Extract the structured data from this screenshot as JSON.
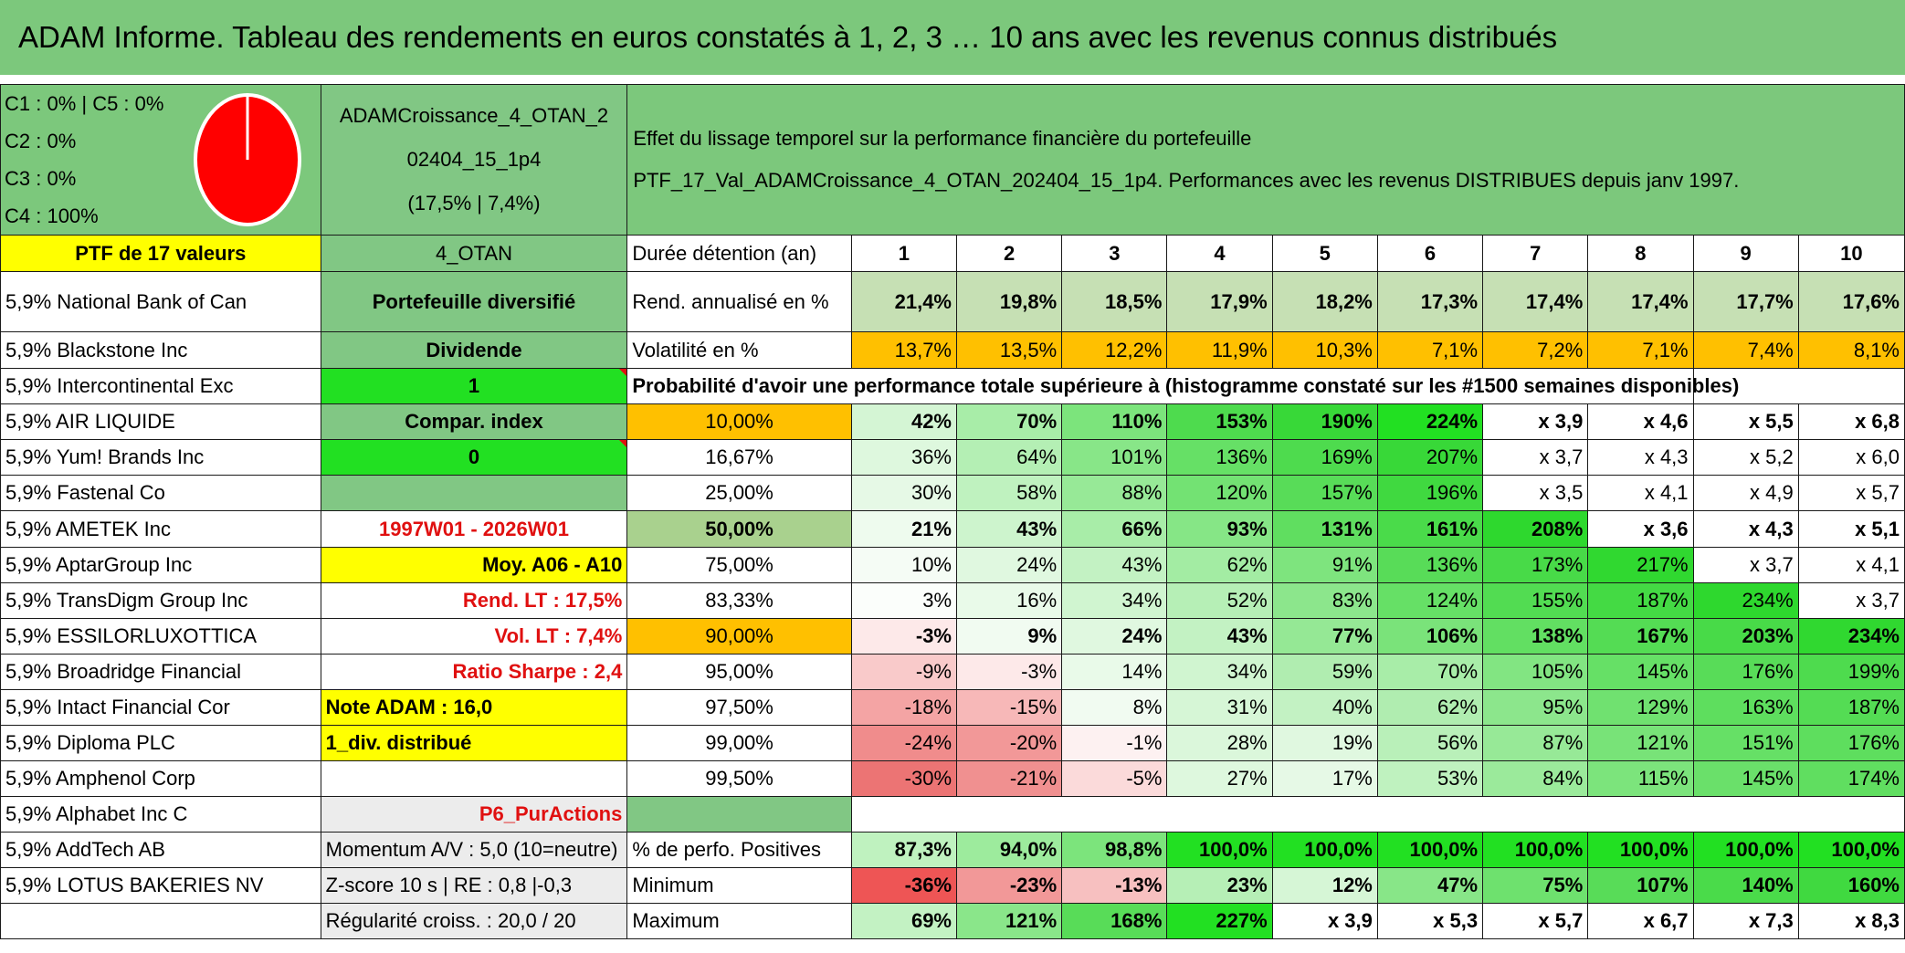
{
  "title": "ADAM Informe. Tableau des rendements en euros constatés à 1, 2, 3 … 10 ans avec les revenus connus distribués",
  "legend": [
    "C1 : 0% | C5 : 0%",
    "C2 : 0%",
    "C3 : 0%",
    "C4 : 100%"
  ],
  "pie": {
    "color": "#ff0000",
    "share_c4": 100
  },
  "portfolio": {
    "name_line1": "ADAMCroissance_4_OTAN_2",
    "name_line2": "02404_15_1p4",
    "name_line3": "(17,5% | 7,4%)"
  },
  "effect": {
    "line1": "Effet du lissage temporel sur la performance financière du portefeuille",
    "line2": "PTF_17_Val_ADAMCroissance_4_OTAN_202404_15_1p4. Performances avec les revenus DISTRIBUES depuis janv 1997."
  },
  "ptf_header": "PTF de 17 valeurs",
  "otan_header": "4_OTAN",
  "duree_label": "Durée détention (an)",
  "years": [
    "1",
    "2",
    "3",
    "4",
    "5",
    "6",
    "7",
    "8",
    "9",
    "10"
  ],
  "holdings": [
    "5,9% National Bank of Can",
    "5,9% Blackstone Inc",
    "5,9% Intercontinental Exc",
    "5,9% AIR LIQUIDE",
    "5,9% Yum! Brands Inc",
    "5,9% Fastenal Co",
    "5,9% AMETEK Inc",
    "5,9% AptarGroup Inc",
    "5,9% TransDigm Group Inc",
    "5,9% ESSILORLUXOTTICA",
    "5,9% Broadridge Financial",
    "5,9% Intact Financial Cor",
    "5,9% Diploma PLC",
    "5,9% Amphenol Corp",
    "5,9% Alphabet Inc C",
    "5,9% AddTech AB",
    "5,9% LOTUS BAKERIES NV"
  ],
  "info": {
    "diversified": "Portefeuille diversifié",
    "dividende": "Dividende",
    "one": "1",
    "compar": "Compar. index",
    "zero": "0",
    "period": "1997W01 - 2026W01",
    "moy": "Moy. A06 - A10",
    "rend_lt": "Rend. LT : 17,5%",
    "vol_lt": "Vol. LT : 7,4%",
    "sharpe": "Ratio Sharpe : 2,4",
    "note": "Note ADAM : 16,0",
    "div": "1_div. distribué",
    "p6": "P6_PurActions",
    "momentum": "Momentum A/V : 5,0 (10=neutre)",
    "zscore": "Z-score 10 s | RE : 0,8 |-0,3",
    "regularite": "Régularité croiss. : 20,0 / 20"
  },
  "rend": {
    "label": "Rend. annualisé en %",
    "values": [
      "21,4%",
      "19,8%",
      "18,5%",
      "17,9%",
      "18,2%",
      "17,3%",
      "17,4%",
      "17,4%",
      "17,7%",
      "17,6%"
    ]
  },
  "vol": {
    "label": "Volatilité en %",
    "values": [
      "13,7%",
      "13,5%",
      "12,2%",
      "11,9%",
      "10,3%",
      "7,1%",
      "7,2%",
      "7,1%",
      "7,4%",
      "8,1%"
    ]
  },
  "prob_header": "Probabilité d'avoir une performance totale supérieure à (histogramme constaté sur les #1500 semaines disponibles)",
  "prob_rows": [
    {
      "p": "10,00%",
      "v": [
        "42%",
        "70%",
        "110%",
        "153%",
        "190%",
        "224%",
        "x 3,9",
        "x 4,6",
        "x 5,5",
        "x 6,8"
      ]
    },
    {
      "p": "16,67%",
      "v": [
        "36%",
        "64%",
        "101%",
        "136%",
        "169%",
        "207%",
        "x 3,7",
        "x 4,3",
        "x 5,2",
        "x 6,0"
      ]
    },
    {
      "p": "25,00%",
      "v": [
        "30%",
        "58%",
        "88%",
        "120%",
        "157%",
        "196%",
        "x 3,5",
        "x 4,1",
        "x 4,9",
        "x 5,7"
      ]
    },
    {
      "p": "50,00%",
      "v": [
        "21%",
        "43%",
        "66%",
        "93%",
        "131%",
        "161%",
        "208%",
        "x 3,6",
        "x 4,3",
        "x 5,1"
      ]
    },
    {
      "p": "75,00%",
      "v": [
        "10%",
        "24%",
        "43%",
        "62%",
        "91%",
        "136%",
        "173%",
        "217%",
        "x 3,7",
        "x 4,1"
      ]
    },
    {
      "p": "83,33%",
      "v": [
        "3%",
        "16%",
        "34%",
        "52%",
        "83%",
        "124%",
        "155%",
        "187%",
        "234%",
        "x 3,7"
      ]
    },
    {
      "p": "90,00%",
      "v": [
        "-3%",
        "9%",
        "24%",
        "43%",
        "77%",
        "106%",
        "138%",
        "167%",
        "203%",
        "234%"
      ]
    },
    {
      "p": "95,00%",
      "v": [
        "-9%",
        "-3%",
        "14%",
        "34%",
        "59%",
        "70%",
        "105%",
        "145%",
        "176%",
        "199%"
      ]
    },
    {
      "p": "97,50%",
      "v": [
        "-18%",
        "-15%",
        "8%",
        "31%",
        "40%",
        "62%",
        "95%",
        "129%",
        "163%",
        "187%"
      ]
    },
    {
      "p": "99,00%",
      "v": [
        "-24%",
        "-20%",
        "-1%",
        "28%",
        "19%",
        "56%",
        "87%",
        "121%",
        "151%",
        "176%"
      ]
    },
    {
      "p": "99,50%",
      "v": [
        "-30%",
        "-21%",
        "-5%",
        "27%",
        "17%",
        "53%",
        "84%",
        "115%",
        "145%",
        "174%"
      ]
    }
  ],
  "pos": {
    "label": "% de perfo. Positives",
    "values": [
      "87,3%",
      "94,0%",
      "98,8%",
      "100,0%",
      "100,0%",
      "100,0%",
      "100,0%",
      "100,0%",
      "100,0%",
      "100,0%"
    ]
  },
  "min": {
    "label": "Minimum",
    "values": [
      "-36%",
      "-23%",
      "-13%",
      "23%",
      "12%",
      "47%",
      "75%",
      "107%",
      "140%",
      "160%"
    ]
  },
  "max": {
    "label": "Maximum",
    "values": [
      "69%",
      "121%",
      "168%",
      "227%",
      "x 3,9",
      "x 5,3",
      "x 5,7",
      "x 6,7",
      "x 7,3",
      "x 8,3"
    ]
  },
  "colors": {
    "prob": [
      [
        "#d4f5d4",
        "#a8eda8",
        "#7ce47c",
        "#4edb4e",
        "#38d838",
        "#22e022",
        "#fff",
        "#fff",
        "#fff",
        "#fff"
      ],
      [
        "#def8de",
        "#b4efb4",
        "#88e688",
        "#66e066",
        "#4edb4e",
        "#38d838",
        "#fff",
        "#fff",
        "#fff",
        "#fff"
      ],
      [
        "#e6f9e6",
        "#bff2bf",
        "#97e997",
        "#73e273",
        "#58dc58",
        "#40d940",
        "#fff",
        "#fff",
        "#fff",
        "#fff"
      ],
      [
        "#eefbee",
        "#cdf4cd",
        "#a8eda8",
        "#86e686",
        "#60de60",
        "#4adb4a",
        "#2ed82e",
        "#fff",
        "#fff",
        "#fff"
      ],
      [
        "#f5fcf5",
        "#e0f8e0",
        "#c3f2c3",
        "#a3ec a3",
        "#7ee47e",
        "#58dc58",
        "#48da48",
        "#30d830",
        "#fff",
        "#fff"
      ],
      [
        "#fbfefb",
        "#e9fae9",
        "#d0f5d0",
        "#b6efb6",
        "#8ce68c",
        "#66e066",
        "#52dc52",
        "#44da44",
        "#2ed82e",
        "#fff"
      ],
      [
        "#fde9e9",
        "#f1fbf1",
        "#e0f8e0",
        "#c3f2c3",
        "#95e895",
        "#7ae37a",
        "#62df62",
        "#54dc54",
        "#48da48",
        "#30d830"
      ],
      [
        "#f9caca",
        "#fde9e9",
        "#e9fae9",
        "#d0f5d0",
        "#b0edb0",
        "#a8eda8",
        "#82e582",
        "#66e066",
        "#58dc58",
        "#4edb4e"
      ],
      [
        "#f4a4a4",
        "#f7b8b8",
        "#f1fbf1",
        "#d6f6d6",
        "#c3f2c3",
        "#b0edb0",
        "#8ce68c",
        "#70e170",
        "#5ede5e",
        "#54dc54"
      ],
      [
        "#f08c8c",
        "#f29898",
        "#fdf1f1",
        "#dbf7db",
        "#e0f8e0",
        "#b9f0b9",
        "#97e997",
        "#78e378",
        "#66e066",
        "#5ede5e"
      ],
      [
        "#ec7474",
        "#f09090",
        "#fbdada",
        "#def8de",
        "#e6f9e6",
        "#bff2bf",
        "#9bea9b",
        "#7ce47c",
        "#6ae06a",
        "#60de60"
      ]
    ],
    "pos": [
      "#bff2bf",
      "#9deb9d",
      "#7ce47c",
      "#22e022",
      "#22e022",
      "#22e022",
      "#22e022",
      "#22e022",
      "#22e022",
      "#22e022"
    ],
    "min": [
      "#ee5555",
      "#f29898",
      "#f7c0c0",
      "#b6efb6",
      "#d6f6d6",
      "#88e688",
      "#6ee16e",
      "#58dc58",
      "#4adb4a",
      "#40d940"
    ],
    "max": [
      "#c3f2c3",
      "#8ae68a",
      "#58dc58",
      "#22e022",
      "#fff",
      "#fff",
      "#fff",
      "#fff",
      "#fff",
      "#fff"
    ]
  }
}
